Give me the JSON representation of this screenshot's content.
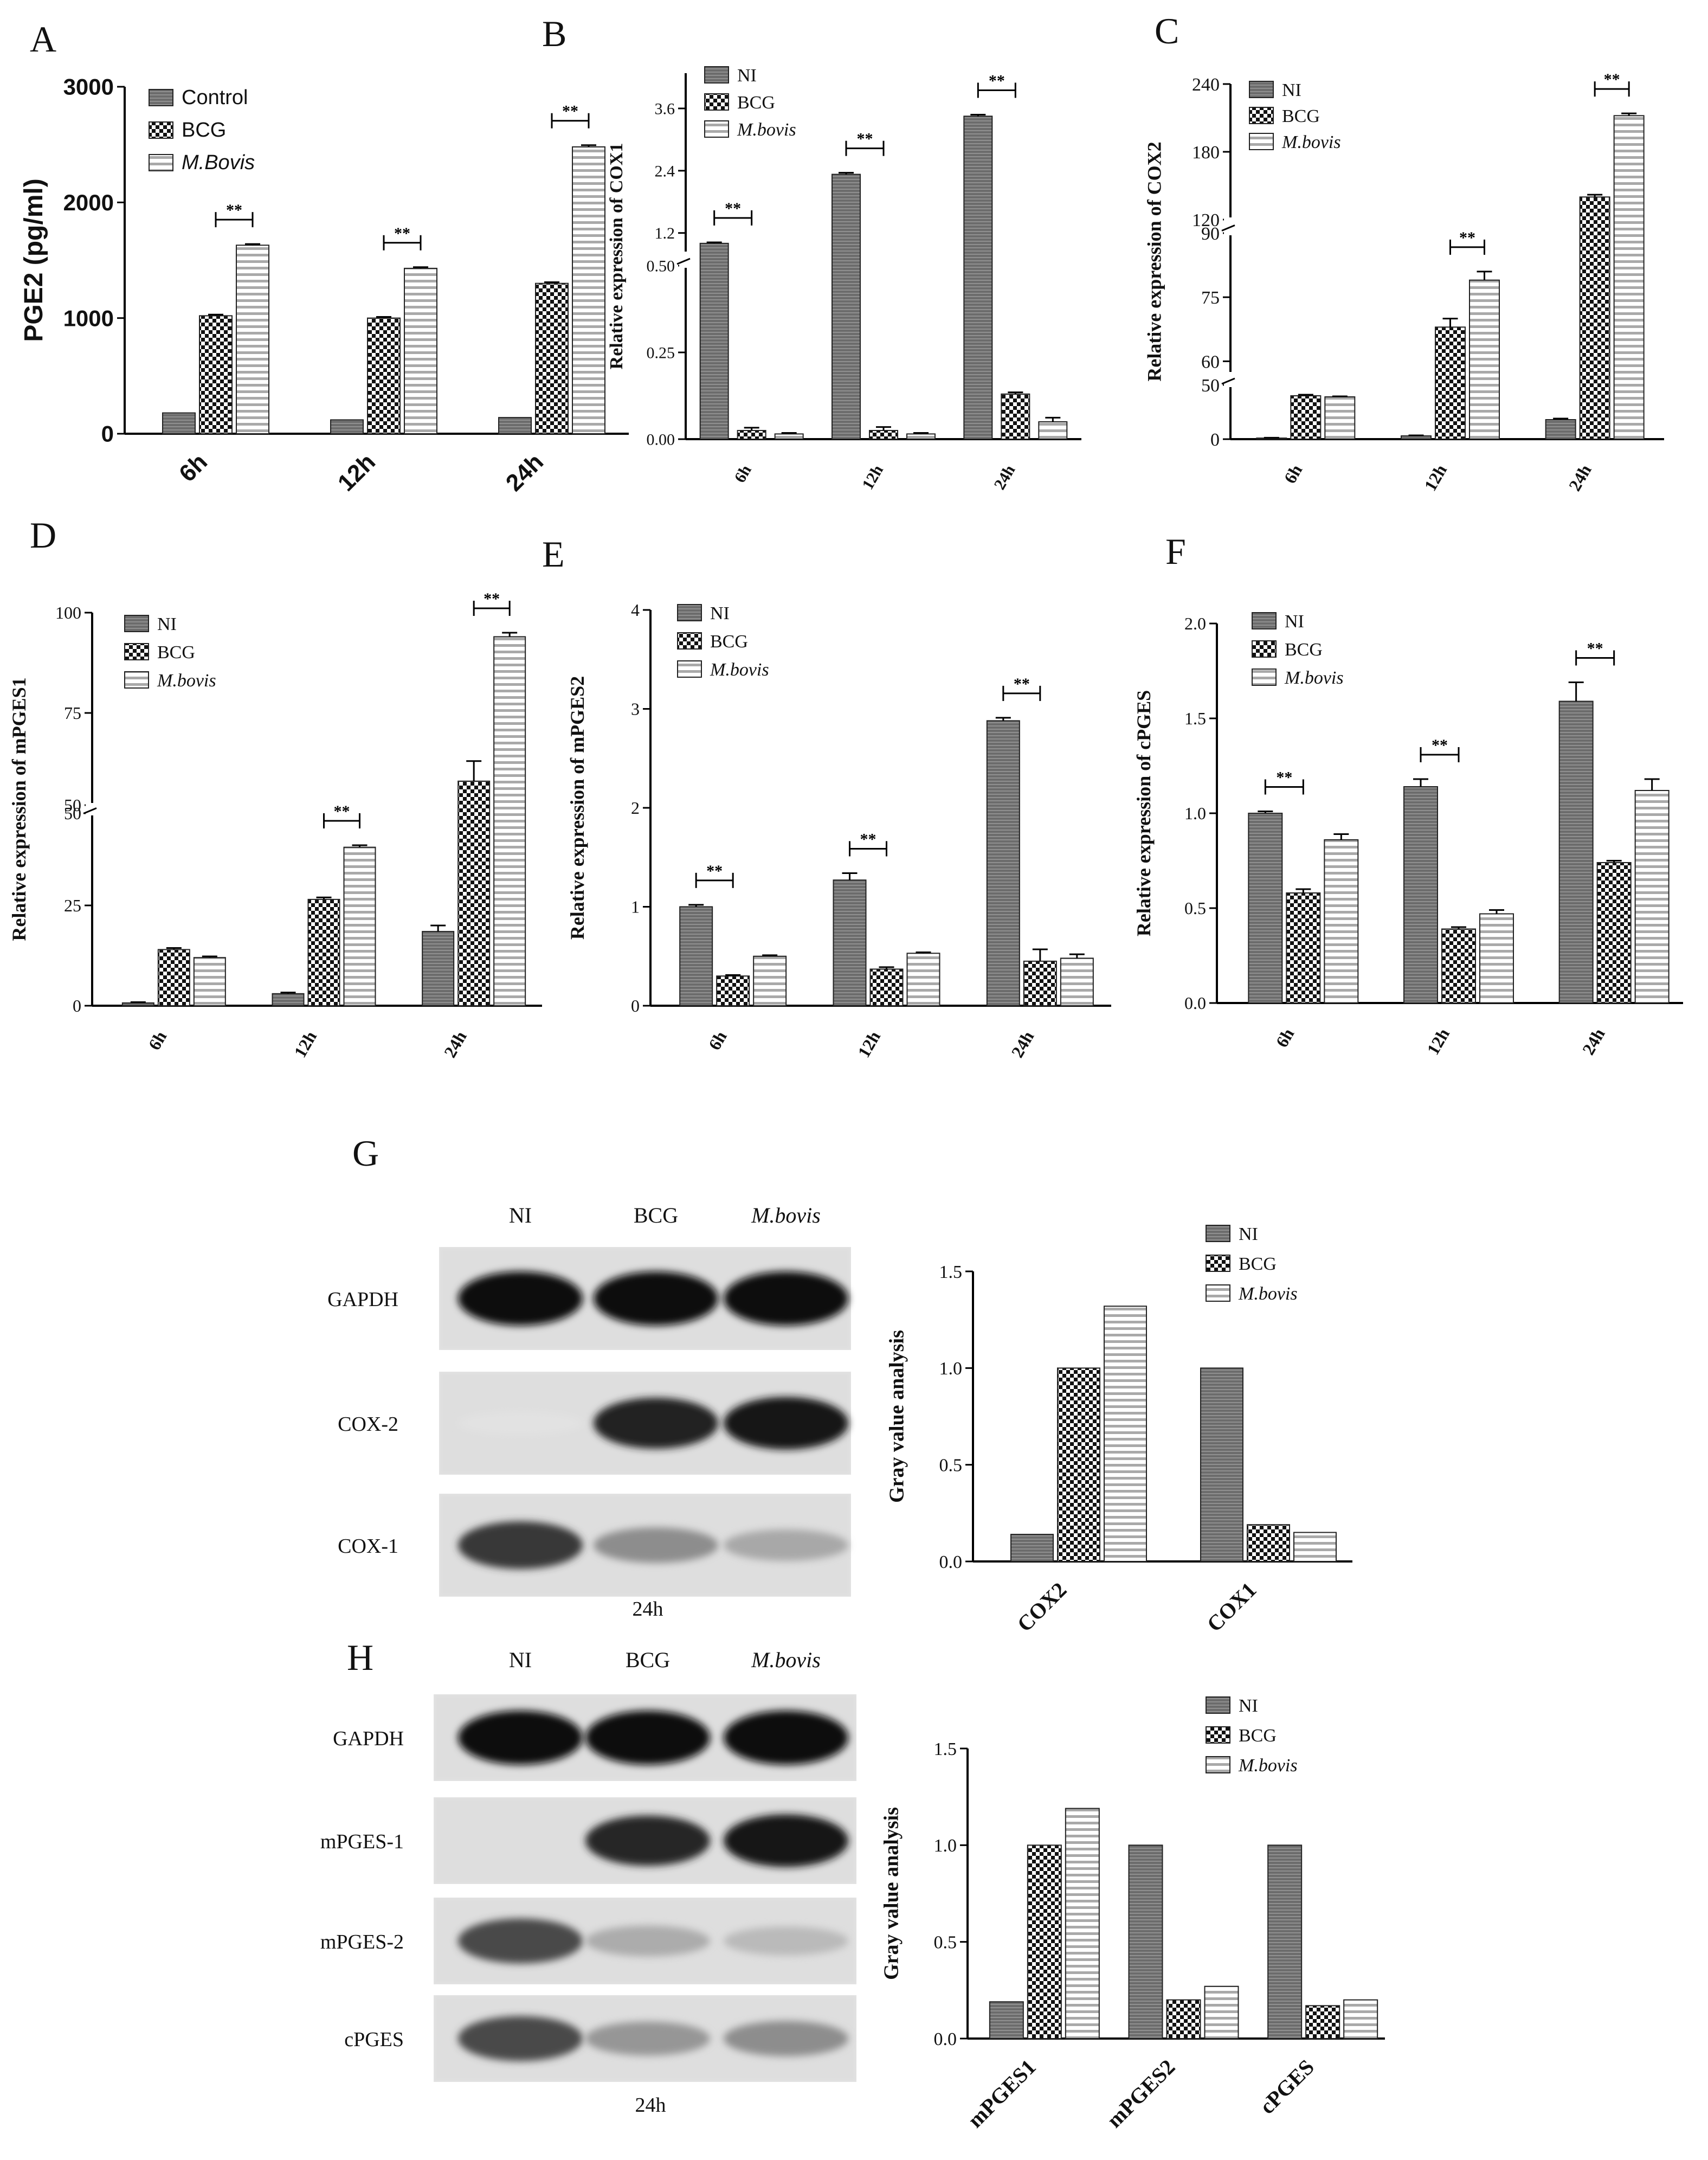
{
  "chart_data": [
    {
      "type": "bar",
      "panel": "A",
      "categories": [
        "6h",
        "12h",
        "24h"
      ],
      "series": [
        {
          "name": "Control",
          "values": [
            180,
            120,
            140
          ]
        },
        {
          "name": "BCG",
          "values": [
            1020,
            1000,
            1300
          ]
        },
        {
          "name": "M.Bovis",
          "values": [
            1630,
            1430,
            2480
          ]
        }
      ],
      "errors": [
        [
          0,
          0,
          0
        ],
        [
          10,
          10,
          10
        ],
        [
          10,
          10,
          15
        ]
      ],
      "ylabel": "PGE2 (pg/ml)",
      "ylim": [
        0,
        3000
      ],
      "ticks": [
        "0",
        "1000",
        "2000",
        "3000"
      ],
      "sig": "**",
      "legend": "top-left"
    },
    {
      "type": "bar",
      "panel": "B",
      "categories": [
        "6h",
        "12h",
        "24h"
      ],
      "series": [
        {
          "name": "NI",
          "values": [
            1.0,
            2.33,
            3.45
          ]
        },
        {
          "name": "BCG",
          "values": [
            0.025,
            0.025,
            0.13
          ]
        },
        {
          "name": "M.bovis",
          "values": [
            0.015,
            0.015,
            0.05
          ]
        }
      ],
      "errors": [
        [
          0.02,
          0.03,
          0.03
        ],
        [
          0.008,
          0.01,
          0.005
        ],
        [
          0.003,
          0.003,
          0.012
        ]
      ],
      "ylabel": "Relative expression of COX1",
      "ylim": [
        0,
        3.6
      ],
      "axis_break": [
        0.5,
        0.8
      ],
      "ticks": [
        "0.00",
        "0.25",
        "0.50",
        "1.2",
        "2.4",
        "3.6"
      ],
      "sig": "**",
      "legend": "top-left"
    },
    {
      "type": "bar",
      "panel": "C",
      "categories": [
        "6h",
        "12h",
        "24h"
      ],
      "series": [
        {
          "name": "NI",
          "values": [
            1,
            3,
            18
          ]
        },
        {
          "name": "BCG",
          "values": [
            40,
            68,
            140
          ]
        },
        {
          "name": "M.bovis",
          "values": [
            39,
            79,
            212
          ]
        }
      ],
      "errors": [
        [
          0.3,
          0.5,
          1
        ],
        [
          1,
          2,
          2
        ],
        [
          0.5,
          2,
          2
        ]
      ],
      "ylabel": "Relative expression of COX2",
      "ylim": [
        0,
        240
      ],
      "axis_breaks": [
        [
          50,
          57
        ],
        [
          90,
          120
        ]
      ],
      "ticks": [
        "0",
        "50",
        "60",
        "75",
        "90",
        "120",
        "180",
        "240"
      ],
      "sig": "**",
      "legend": "top-left"
    },
    {
      "type": "bar",
      "panel": "D",
      "categories": [
        "6h",
        "12h",
        "24h"
      ],
      "series": [
        {
          "name": "NI",
          "values": [
            0.7,
            3,
            18.5
          ]
        },
        {
          "name": "BCG",
          "values": [
            14,
            26.5,
            58
          ]
        },
        {
          "name": "M.bovis",
          "values": [
            12,
            39.5,
            94
          ]
        }
      ],
      "errors": [
        [
          0.2,
          0.3,
          1.5
        ],
        [
          0.4,
          0.5,
          5
        ],
        [
          0.3,
          0.5,
          1
        ]
      ],
      "ylabel": "Relative expression of mPGES1",
      "ylim": [
        0,
        100
      ],
      "axis_break": [
        50,
        50
      ],
      "ticks": [
        "0",
        "25",
        "50",
        "50",
        "75",
        "100"
      ],
      "sig": "**",
      "legend": "top-left"
    },
    {
      "type": "bar",
      "panel": "E",
      "categories": [
        "6h",
        "12h",
        "24h"
      ],
      "series": [
        {
          "name": "NI",
          "values": [
            1.0,
            1.27,
            2.88
          ]
        },
        {
          "name": "BCG",
          "values": [
            0.3,
            0.37,
            0.45
          ]
        },
        {
          "name": "M.bovis",
          "values": [
            0.5,
            0.53,
            0.48
          ]
        }
      ],
      "errors": [
        [
          0.02,
          0.07,
          0.03
        ],
        [
          0.01,
          0.02,
          0.12
        ],
        [
          0.01,
          0.01,
          0.04
        ]
      ],
      "ylabel": "Relative expression of mPGES2",
      "ylim": [
        0,
        4
      ],
      "ticks": [
        "0",
        "1",
        "2",
        "3",
        "4"
      ],
      "sig": "**",
      "legend": "top-left"
    },
    {
      "type": "bar",
      "panel": "F",
      "categories": [
        "6h",
        "12h",
        "24h"
      ],
      "series": [
        {
          "name": "NI",
          "values": [
            1.0,
            1.14,
            1.59
          ]
        },
        {
          "name": "BCG",
          "values": [
            0.58,
            0.39,
            0.74
          ]
        },
        {
          "name": "M.bovis",
          "values": [
            0.86,
            0.47,
            1.12
          ]
        }
      ],
      "errors": [
        [
          0.01,
          0.04,
          0.1
        ],
        [
          0.02,
          0.01,
          0.01
        ],
        [
          0.03,
          0.02,
          0.06
        ]
      ],
      "ylabel": "Relative expression of cPGES",
      "ylim": [
        0,
        2.0
      ],
      "ticks": [
        "0.0",
        "0.5",
        "1.0",
        "1.5",
        "2.0"
      ],
      "sig": "**",
      "legend": "top-left"
    },
    {
      "type": "bar",
      "panel": "G",
      "categories": [
        "COX2",
        "COX1"
      ],
      "series": [
        {
          "name": "NI",
          "values": [
            0.14,
            1.0
          ]
        },
        {
          "name": "BCG",
          "values": [
            1.0,
            0.19
          ]
        },
        {
          "name": "M.bovis",
          "values": [
            1.32,
            0.15
          ]
        }
      ],
      "ylabel": "Gray value analysis",
      "ylim": [
        0,
        1.5
      ],
      "ticks": [
        "0.0",
        "0.5",
        "1.0",
        "1.5"
      ],
      "legend": "top-right"
    },
    {
      "type": "bar",
      "panel": "H",
      "categories": [
        "mPGES1",
        "mPGES2",
        "cPGES"
      ],
      "series": [
        {
          "name": "NI",
          "values": [
            0.19,
            1.0,
            1.0
          ]
        },
        {
          "name": "BCG",
          "values": [
            1.0,
            0.2,
            0.17
          ]
        },
        {
          "name": "M.bovis",
          "values": [
            1.19,
            0.27,
            0.2
          ]
        }
      ],
      "ylabel": "Gray value analysis",
      "ylim": [
        0,
        1.5
      ],
      "ticks": [
        "0.0",
        "0.5",
        "1.0",
        "1.5"
      ],
      "legend": "top-right"
    }
  ],
  "blots": {
    "G": {
      "lanes": [
        "NI",
        "BCG",
        "M.bovis"
      ],
      "rows": [
        {
          "label": "GAPDH",
          "intensity": [
            1.0,
            1.0,
            1.0
          ]
        },
        {
          "label": "COX-2",
          "intensity": [
            0.04,
            0.9,
            0.95
          ]
        },
        {
          "label": "COX-1",
          "intensity": [
            0.8,
            0.42,
            0.3
          ]
        }
      ],
      "time": "24h"
    },
    "H": {
      "lanes": [
        "NI",
        "BCG",
        "M.bovis"
      ],
      "rows": [
        {
          "label": "GAPDH",
          "intensity": [
            1.0,
            1.0,
            1.0
          ]
        },
        {
          "label": "mPGES-1",
          "intensity": [
            0.0,
            0.88,
            0.95
          ]
        },
        {
          "label": "mPGES-2",
          "intensity": [
            0.72,
            0.28,
            0.22
          ]
        },
        {
          "label": "cPGES",
          "intensity": [
            0.72,
            0.38,
            0.42
          ]
        }
      ],
      "time": "24h"
    }
  },
  "colors": {
    "s0": "#6f6f6f",
    "s1": "#1a1a1a",
    "s2": "#bbbbbb",
    "axis": "#000000"
  }
}
